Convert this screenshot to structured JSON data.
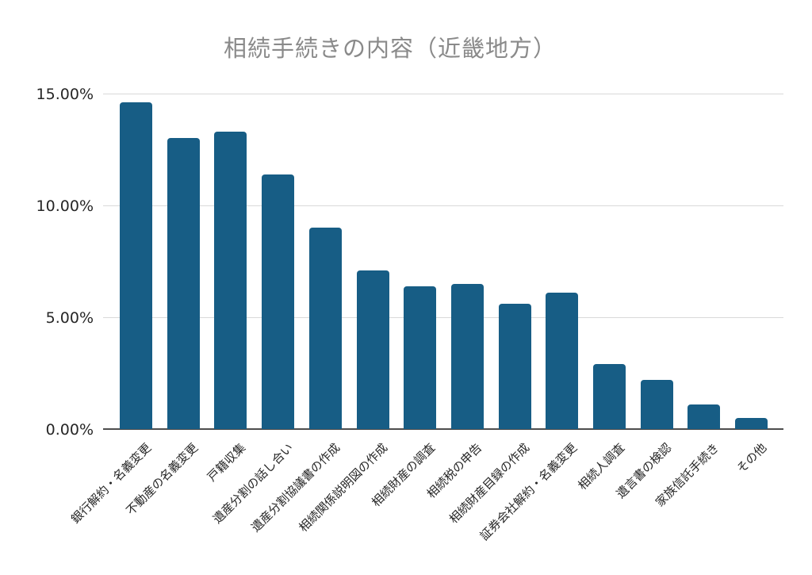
{
  "colors": {
    "background": "#ffffff",
    "bar": "#175d85",
    "gridline": "#d9d9d9",
    "axis": "#4d4d4d",
    "title": "#8a8a8a",
    "tick_text": "#262626"
  },
  "chart_data": {
    "type": "bar",
    "title": "相続手続きの内容（近畿地方）",
    "xlabel": "",
    "ylabel": "",
    "value_unit": "%",
    "ylim": [
      0,
      15
    ],
    "grid": true,
    "legend": false,
    "yticks": [
      {
        "value": 0,
        "label": "0.00%"
      },
      {
        "value": 5,
        "label": "5.00%"
      },
      {
        "value": 10,
        "label": "10.00%"
      },
      {
        "value": 15,
        "label": "15.00%"
      }
    ],
    "categories": [
      "銀行解約・名義変更",
      "不動産の名義変更",
      "戸籍収集",
      "遺産分割の話し合い",
      "遺産分割協議書の作成",
      "相続関係説明図の作成",
      "相続財産の調査",
      "相続税の申告",
      "相続財産目録の作成",
      "証券会社解約・名義変更",
      "相続人調査",
      "遺言書の検認",
      "家族信託手続き",
      "その他"
    ],
    "values": [
      14.6,
      13.0,
      13.3,
      11.4,
      9.0,
      7.1,
      6.4,
      6.5,
      5.6,
      6.1,
      2.9,
      2.2,
      1.1,
      0.5
    ]
  }
}
